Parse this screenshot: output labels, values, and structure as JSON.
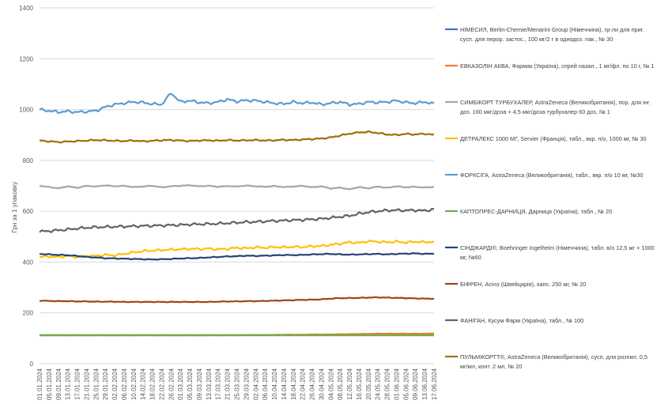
{
  "chart_data": {
    "type": "line",
    "ylabel": "Грн за 1 упаковку",
    "xlabel": "",
    "ylim": [
      0,
      1400
    ],
    "yticks": [
      "0",
      "200",
      "400",
      "600",
      "800",
      "1000",
      "1200",
      "1400"
    ],
    "grid": true,
    "legend_position": "right",
    "x_tick_labels": [
      "01.01.2024",
      "05.01.2024",
      "09.01.2024",
      "13.01.2024",
      "17.01.2024",
      "21.01.2024",
      "25.01.2024",
      "29.01.2024",
      "02.02.2024",
      "06.02.2024",
      "10.02.2024",
      "14.02.2024",
      "18.02.2024",
      "22.02.2024",
      "26.02.2024",
      "01.03.2024",
      "05.03.2024",
      "09.03.2024",
      "13.03.2024",
      "17.03.2024",
      "21.03.2024",
      "25.03.2024",
      "29.03.2024",
      "02.04.2024",
      "06.04.2024",
      "10.04.2024",
      "14.04.2024",
      "18.04.2024",
      "22.04.2024",
      "26.04.2024",
      "30.04.2024",
      "04.05.2024",
      "08.05.2024",
      "12.05.2024",
      "16.05.2024",
      "20.05.2024",
      "24.05.2024",
      "28.05.2024",
      "01.06.2024",
      "05.06.2024",
      "09.06.2024",
      "13.06.2024",
      "17.06.2024"
    ],
    "series": [
      {
        "name": "НІМЕСИЛ, Berlin-Chemie/Menarini Group (Німеччина), гр-ли для приг. сусп. для перор. застос., 100 мг/2 г в однодоз. пак., № 30",
        "color": "#4472C4",
        "values": [
          112,
          112,
          112,
          112,
          112,
          112,
          112,
          112,
          112,
          112,
          112,
          112,
          112,
          112,
          112,
          112,
          112,
          112,
          112,
          112,
          112,
          112,
          112,
          112,
          112,
          112,
          112,
          112,
          112,
          112,
          112,
          112,
          112,
          112,
          112,
          112,
          112,
          112,
          112,
          112,
          112,
          112,
          112
        ]
      },
      {
        "name": "ЕВКАЗОЛІН АКВА, Фармак (Україна), спрей назал., 1 мг/фл. по 10 г, № 1",
        "color": "#ED7D31",
        "values": [
          112,
          112,
          112,
          112,
          112,
          112,
          112,
          112,
          112,
          112,
          112,
          112,
          112,
          112,
          112,
          112,
          112,
          112,
          112,
          112,
          112,
          112,
          113,
          113,
          113,
          113,
          114,
          114,
          114,
          115,
          115,
          115,
          116,
          116,
          117,
          117,
          118,
          118,
          118,
          118,
          118,
          118,
          119
        ]
      },
      {
        "name": "СИМБІКОРТ ТУРБУХАЛЕР, AstraZeneca (Великобританія), пор. для інг. доз. 160 мкг/доза + 4,5 мкг/доза турбухалер 60 доз, № 1",
        "color": "#A5A5A5",
        "values": [
          700,
          695,
          690,
          698,
          692,
          700,
          697,
          702,
          698,
          700,
          695,
          697,
          700,
          694,
          698,
          700,
          702,
          698,
          700,
          696,
          699,
          697,
          701,
          698,
          696,
          699,
          695,
          697,
          700,
          694,
          698,
          689,
          693,
          686,
          695,
          690,
          697,
          692,
          698,
          694,
          696,
          693,
          696
        ]
      },
      {
        "name": "ДЕТРАЛЕКС 1000 МГ, Servier (Франція), табл., вкр. п/о, 1000 мг, № 30",
        "color": "#FFC000",
        "values": [
          420,
          422,
          420,
          424,
          420,
          423,
          424,
          428,
          426,
          432,
          438,
          443,
          445,
          447,
          449,
          450,
          452,
          451,
          453,
          450,
          452,
          456,
          454,
          458,
          456,
          459,
          458,
          460,
          459,
          462,
          463,
          468,
          472,
          478,
          475,
          482,
          480,
          478,
          480,
          477,
          480,
          478,
          480
        ]
      },
      {
        "name": "ФОРКСІГА, AstraZeneca (Великобританія), табл., вкр. п/о 10 мг, №30",
        "color": "#5B9BD5",
        "values": [
          1000,
          995,
          990,
          993,
          990,
          992,
          995,
          1010,
          1020,
          1025,
          1030,
          1028,
          1022,
          1020,
          1065,
          1030,
          1035,
          1028,
          1025,
          1030,
          1040,
          1032,
          1036,
          1035,
          1030,
          1025,
          1022,
          1030,
          1025,
          1028,
          1020,
          1025,
          1030,
          1020,
          1022,
          1030,
          1028,
          1030,
          1035,
          1028,
          1025,
          1030,
          1022
        ]
      },
      {
        "name": "КАПТОПРЕС-ДАРНИЦЯ, Дарниця (Україна), табл., № 20",
        "color": "#70AD47",
        "values": [
          112,
          112,
          112,
          112,
          112,
          112,
          112,
          112,
          112,
          112,
          112,
          112,
          112,
          112,
          112,
          112,
          112,
          112,
          112,
          112,
          112,
          112,
          112,
          112,
          112,
          112,
          112,
          112,
          112,
          112,
          112,
          112,
          112,
          112,
          112,
          112,
          112,
          112,
          112,
          112,
          112,
          112,
          112
        ]
      },
      {
        "name": "СІНДЖАРДІ®, Boehringer Ingelheim (Німеччина), табл. в/о 12,5 мг + 1000 мг, №60",
        "color": "#264478",
        "values": [
          432,
          430,
          428,
          427,
          424,
          420,
          418,
          415,
          414,
          413,
          412,
          411,
          410,
          411,
          412,
          414,
          415,
          416,
          418,
          420,
          422,
          423,
          425,
          424,
          425,
          426,
          428,
          427,
          428,
          430,
          431,
          432,
          430,
          429,
          430,
          431,
          432,
          430,
          432,
          433,
          434,
          432,
          433
        ]
      },
      {
        "name": "БІФРЕН, Acino (Швейцарія), капс. 250 мг, № 20",
        "color": "#9E480E",
        "values": [
          248,
          247,
          246,
          246,
          245,
          245,
          244,
          244,
          244,
          243,
          243,
          243,
          243,
          243,
          243,
          243,
          243,
          243,
          243,
          244,
          245,
          245,
          246,
          246,
          247,
          248,
          249,
          250,
          251,
          252,
          253,
          256,
          258,
          258,
          259,
          260,
          261,
          260,
          259,
          258,
          257,
          256,
          256
        ]
      },
      {
        "name": "ФАНІГАН, Кусум Фарм (Україна), табл., № 100",
        "color": "#636363",
        "values": [
          520,
          522,
          525,
          528,
          532,
          535,
          537,
          538,
          539,
          540,
          541,
          542,
          543,
          544,
          545,
          546,
          548,
          549,
          550,
          551,
          553,
          555,
          557,
          558,
          560,
          562,
          563,
          565,
          566,
          568,
          570,
          574,
          578,
          582,
          590,
          596,
          600,
          603,
          604,
          603,
          604,
          602,
          608
        ]
      },
      {
        "name": "ПУЛЬМІКОРТТ®, AstraZeneca (Великобританія), сусп. для розпил. 0,5 мг/мл, конт. 2 мл, № 20",
        "color": "#997300",
        "values": [
          878,
          875,
          872,
          874,
          876,
          878,
          880,
          879,
          877,
          876,
          878,
          875,
          877,
          879,
          880,
          878,
          876,
          878,
          879,
          877,
          880,
          878,
          879,
          880,
          878,
          879,
          881,
          880,
          882,
          884,
          886,
          890,
          898,
          905,
          910,
          912,
          908,
          902,
          900,
          904,
          902,
          905,
          900
        ]
      }
    ]
  },
  "legend": {
    "items": [
      {
        "line1": "НІМЕСИЛ, Berlin-Chemie/Menarini Group (Німеччина), гр-ли для приг.",
        "line2": "сусп. для перор. застос., 100 мг/2 г в однодоз. пак., № 30"
      },
      {
        "line1": "ЕВКАЗОЛІН АКВА, Фармак (Україна), спрей назал., 1 мг/фл. по 10 г, № 1",
        "line2": ""
      },
      {
        "line1": "СИМБІКОРТ ТУРБУХАЛЕР, AstraZeneca (Великобританія), пор. для інг.",
        "line2": "доз. 160 мкг/доза + 4,5 мкг/доза турбухалер 60 доз, № 1"
      },
      {
        "line1": "ДЕТРАЛЕКС 1000 МГ, Servier (Франція), табл., вкр. п/о, 1000 мг, № 30",
        "line2": ""
      },
      {
        "line1": "ФОРКСІГА, AstraZeneca (Великобританія), табл., вкр. п/о 10 мг, №30",
        "line2": ""
      },
      {
        "line1": "КАПТОПРЕС-ДАРНИЦЯ, Дарниця (Україна), табл., № 20",
        "line2": ""
      },
      {
        "line1": "СІНДЖАРДІ®, Boehringer Ingelheim (Німеччина), табл. в/о 12,5 мг + 1000",
        "line2": "мг, №60"
      },
      {
        "line1": "БІФРЕН, Acino (Швейцарія), капс. 250 мг, № 20",
        "line2": ""
      },
      {
        "line1": "ФАНІГАН, Кусум Фарм (Україна), табл., № 100",
        "line2": ""
      },
      {
        "line1": "ПУЛЬМІКОРТТ®, AstraZeneca (Великобританія), сусп. для розпил. 0,5",
        "line2": "мг/мл, конт. 2 мл, № 20"
      }
    ]
  }
}
